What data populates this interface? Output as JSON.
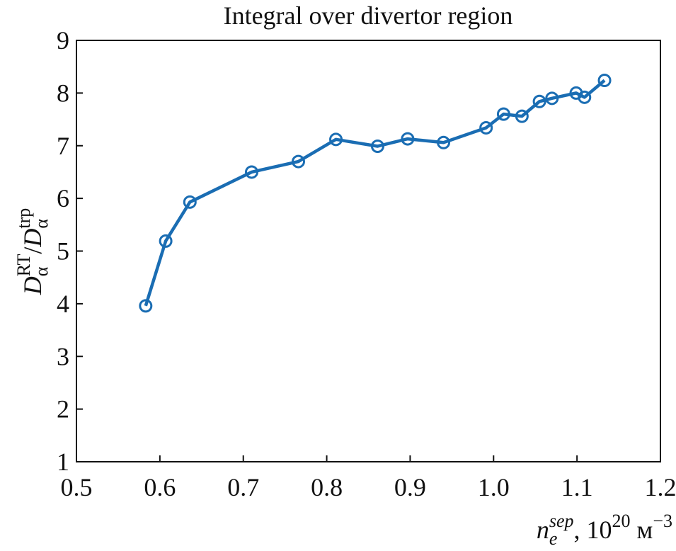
{
  "chart_data": {
    "type": "line",
    "title": "Integral over divertor region",
    "xlabel": [
      "n",
      "e",
      "sep",
      ", 10",
      "20",
      " м",
      "−3"
    ],
    "ylabel": [
      "D",
      "α",
      "RT",
      "/",
      "D",
      "α",
      "trp"
    ],
    "x": [
      0.583,
      0.607,
      0.636,
      0.71,
      0.766,
      0.811,
      0.861,
      0.897,
      0.94,
      0.991,
      1.012,
      1.034,
      1.055,
      1.07,
      1.099,
      1.109,
      1.133
    ],
    "series": [
      {
        "color": "#1a6db3",
        "values": [
          3.96,
          5.19,
          5.93,
          6.5,
          6.7,
          7.12,
          6.99,
          7.13,
          7.06,
          7.34,
          7.6,
          7.56,
          7.84,
          7.9,
          8.0,
          7.92,
          8.24
        ]
      }
    ],
    "xlim": [
      0.5,
      1.2
    ],
    "xticks": [
      0.5,
      0.6,
      0.7,
      0.8,
      0.9,
      {
        "value": 1,
        "label": "1.0"
      },
      1.1,
      1.2
    ],
    "ylim": [
      1,
      9
    ],
    "yticks": [
      1,
      2,
      3,
      4,
      5,
      6,
      7,
      8,
      9
    ]
  }
}
